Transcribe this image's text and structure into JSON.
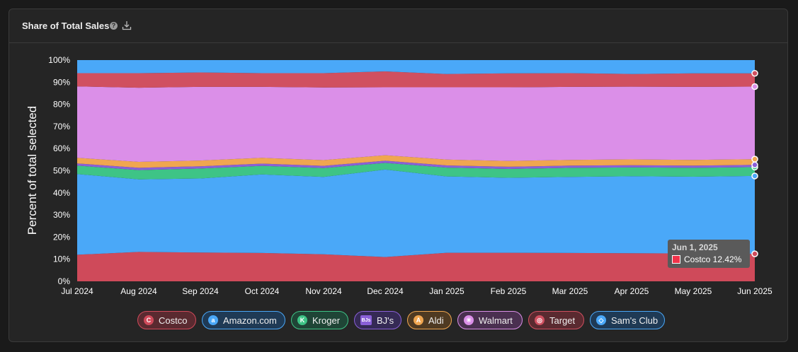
{
  "card": {
    "title": "Share of Total Sales",
    "help_icon": "?",
    "download_icon": "download-icon"
  },
  "tooltip": {
    "date": "Jun 1, 2025",
    "series": "Costco",
    "value": "12.42%",
    "label": "Costco 12.42%",
    "swatch_color": "#f2334a"
  },
  "chart_data": {
    "type": "area",
    "stacked": true,
    "normalized": true,
    "ylabel": "Percent of total selected",
    "xlabel": "",
    "ylim": [
      0,
      100
    ],
    "yticks": [
      "0%",
      "10%",
      "20%",
      "30%",
      "40%",
      "50%",
      "60%",
      "70%",
      "80%",
      "90%",
      "100%"
    ],
    "categories": [
      "Jul 2024",
      "Aug 2024",
      "Sep 2024",
      "Oct 2024",
      "Nov 2024",
      "Dec 2024",
      "Jan 2025",
      "Feb 2025",
      "Mar 2025",
      "Apr 2025",
      "May 2025",
      "Jun 2025"
    ],
    "series": [
      {
        "name": "Costco",
        "color": "#cf4a5a",
        "values": [
          12.0,
          13.3,
          13.0,
          12.8,
          12.2,
          11.0,
          12.9,
          12.9,
          12.8,
          12.7,
          12.6,
          12.42
        ]
      },
      {
        "name": "Amazon.com",
        "color": "#4aa8f8",
        "values": [
          36.5,
          32.8,
          33.5,
          35.5,
          35.0,
          39.5,
          34.5,
          33.9,
          34.4,
          34.8,
          34.7,
          35.2
        ]
      },
      {
        "name": "Kroger",
        "color": "#3ec486",
        "values": [
          3.8,
          4.2,
          4.5,
          3.9,
          4.0,
          3.0,
          4.0,
          4.0,
          4.1,
          4.0,
          4.0,
          4.0
        ]
      },
      {
        "name": "BJ's",
        "color": "#8a60d8",
        "values": [
          1.0,
          1.0,
          1.0,
          1.0,
          1.0,
          1.0,
          1.0,
          1.0,
          1.0,
          1.0,
          1.0,
          1.0
        ]
      },
      {
        "name": "Aldi",
        "color": "#f0a650",
        "values": [
          2.5,
          2.7,
          2.6,
          2.6,
          2.6,
          2.5,
          2.6,
          2.6,
          2.6,
          2.6,
          2.6,
          2.6
        ]
      },
      {
        "name": "Walmart",
        "color": "#db8fe8",
        "values": [
          32.3,
          33.5,
          33.3,
          32.1,
          32.8,
          30.7,
          32.7,
          33.3,
          33.0,
          32.9,
          33.0,
          32.8
        ]
      },
      {
        "name": "Target",
        "color": "#d05060",
        "values": [
          6.0,
          6.6,
          6.5,
          6.2,
          6.5,
          7.2,
          6.0,
          6.3,
          6.2,
          5.7,
          6.1,
          6.0
        ]
      },
      {
        "name": "Sam's Club",
        "color": "#4aa8f8",
        "values": [
          5.9,
          5.9,
          5.6,
          5.9,
          5.9,
          5.1,
          6.3,
          6.0,
          5.9,
          6.3,
          6.0,
          5.98
        ]
      }
    ],
    "grid": false,
    "legend_position": "bottom-center"
  },
  "legend": [
    {
      "label": "Costco",
      "icon": "costco-logo-icon",
      "glyph": "C",
      "color": "#cf4a5a",
      "bg": "#5a2a30",
      "border": "#cf4a5a"
    },
    {
      "label": "Amazon.com",
      "icon": "amazon-logo-icon",
      "glyph": "a",
      "color": "#4aa8f8",
      "bg": "#1f3a55",
      "border": "#4aa8f8"
    },
    {
      "label": "Kroger",
      "icon": "kroger-cart-icon",
      "glyph": "K",
      "color": "#3ec486",
      "bg": "#1f4536",
      "border": "#3ec486"
    },
    {
      "label": "BJ's",
      "icon": "bjs-logo-icon",
      "glyph": "BJs",
      "color": "#8a60d8",
      "bg": "#352a55",
      "border": "#8a60d8"
    },
    {
      "label": "Aldi",
      "icon": "aldi-logo-icon",
      "glyph": "A",
      "color": "#f0a650",
      "bg": "#4f3a22",
      "border": "#f0a650"
    },
    {
      "label": "Walmart",
      "icon": "walmart-spark-icon",
      "glyph": "✳",
      "color": "#db8fe8",
      "bg": "#4a3050",
      "border": "#db8fe8"
    },
    {
      "label": "Target",
      "icon": "target-bullseye-icon",
      "glyph": "◎",
      "color": "#d05060",
      "bg": "#5a2a30",
      "border": "#d05060"
    },
    {
      "label": "Sam's Club",
      "icon": "sams-club-logo-icon",
      "glyph": "◇",
      "color": "#4aa8f8",
      "bg": "#1f3a55",
      "border": "#4aa8f8"
    }
  ]
}
